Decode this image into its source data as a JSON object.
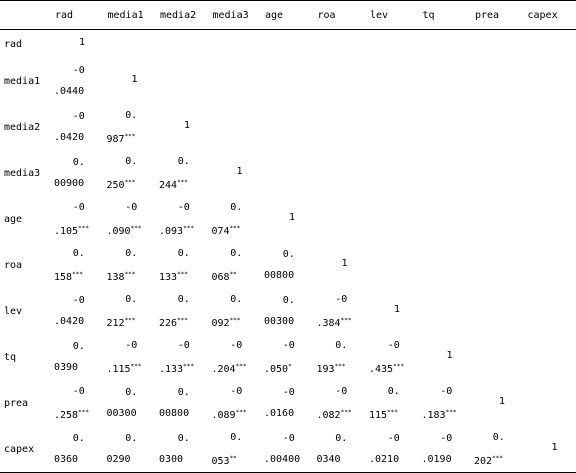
{
  "table": {
    "columns": [
      "rad",
      "media1",
      "media2",
      "media3",
      "age",
      "roa",
      "lev",
      "tq",
      "prea",
      "capex"
    ],
    "rows": [
      {
        "label": "rad",
        "cells": [
          "1"
        ]
      },
      {
        "label": "media1",
        "cells": [
          {
            "top": "-0",
            "bottom": ".0440"
          },
          "1"
        ]
      },
      {
        "label": "media2",
        "cells": [
          {
            "top": "-0",
            "bottom": ".0420"
          },
          {
            "top": "0.",
            "bottom": "987",
            "stars": "***"
          },
          "1"
        ]
      },
      {
        "label": "media3",
        "cells": [
          {
            "top": "0.",
            "bottom": "00900"
          },
          {
            "top": "0.",
            "bottom": "250",
            "stars": "***"
          },
          {
            "top": "0.",
            "bottom": "244",
            "stars": "***"
          },
          "1"
        ]
      },
      {
        "label": "age",
        "cells": [
          {
            "top": "-0",
            "bottom": ".105",
            "stars": "***"
          },
          {
            "top": "-0",
            "bottom": ".090",
            "stars": "***"
          },
          {
            "top": "-0",
            "bottom": ".093",
            "stars": "***"
          },
          {
            "top": "0.",
            "bottom": "074",
            "stars": "***"
          },
          "1"
        ]
      },
      {
        "label": "roa",
        "cells": [
          {
            "top": "0.",
            "bottom": "158",
            "stars": "***"
          },
          {
            "top": "0.",
            "bottom": "138",
            "stars": "***"
          },
          {
            "top": "0.",
            "bottom": "133",
            "stars": "***"
          },
          {
            "top": "0.",
            "bottom": "068",
            "stars": "**"
          },
          {
            "top": "0.",
            "bottom": "00800"
          },
          "1"
        ]
      },
      {
        "label": "lev",
        "cells": [
          {
            "top": "-0",
            "bottom": ".0420"
          },
          {
            "top": "0.",
            "bottom": "212",
            "stars": "***"
          },
          {
            "top": "0.",
            "bottom": "226",
            "stars": "***"
          },
          {
            "top": "0.",
            "bottom": "092",
            "stars": "***"
          },
          {
            "top": "0.",
            "bottom": "00300"
          },
          {
            "top": "-0",
            "bottom": ".384",
            "stars": "***"
          },
          "1"
        ]
      },
      {
        "label": "tq",
        "cells": [
          {
            "top": "0.",
            "bottom": "0390"
          },
          {
            "top": "-0",
            "bottom": ".115",
            "stars": "***"
          },
          {
            "top": "-0",
            "bottom": ".133",
            "stars": "***"
          },
          {
            "top": "-0",
            "bottom": ".204",
            "stars": "***"
          },
          {
            "top": "-0",
            "bottom": ".050",
            "stars": "*"
          },
          {
            "top": "0.",
            "bottom": "193",
            "stars": "***"
          },
          {
            "top": "-0",
            "bottom": ".435",
            "stars": "***"
          },
          "1"
        ]
      },
      {
        "label": "prea",
        "cells": [
          {
            "top": "-0",
            "bottom": ".258",
            "stars": "***"
          },
          {
            "top": "0.",
            "bottom": "00300"
          },
          {
            "top": "0.",
            "bottom": "00800"
          },
          {
            "top": "-0",
            "bottom": ".089",
            "stars": "***"
          },
          {
            "top": "-0",
            "bottom": ".0160"
          },
          {
            "top": "-0",
            "bottom": ".082",
            "stars": "***"
          },
          {
            "top": "0.",
            "bottom": "115",
            "stars": "***"
          },
          {
            "top": "-0",
            "bottom": ".183",
            "stars": "***"
          },
          "1"
        ]
      },
      {
        "label": "capex",
        "cells": [
          {
            "top": "0.",
            "bottom": "0360"
          },
          {
            "top": "0.",
            "bottom": "0290"
          },
          {
            "top": "0.",
            "bottom": "0300"
          },
          {
            "top": "0.",
            "bottom": "053",
            "stars": "**"
          },
          {
            "top": "-0",
            "bottom": ".00400"
          },
          {
            "top": "0.",
            "bottom": "0340"
          },
          {
            "top": "-0",
            "bottom": ".0210"
          },
          {
            "top": "-0",
            "bottom": ".0190"
          },
          {
            "top": "0.",
            "bottom": "202",
            "stars": "***"
          },
          "1"
        ]
      }
    ]
  }
}
